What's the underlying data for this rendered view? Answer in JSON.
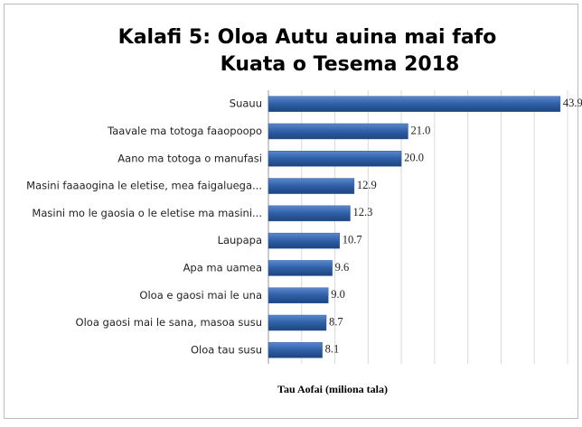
{
  "chart_data": {
    "type": "bar",
    "orientation": "horizontal",
    "title": "Kalafi 5: Oloa Autu auina mai fafo",
    "subtitle": "Kuata o Tesema 2018",
    "x_label": "Tau Aofai (miliona tala)",
    "categories": [
      "Suauu",
      "Taavale ma totoga faaopoopo",
      "Aano ma totoga o manufasi",
      "Masini faaaogina le eletise, mea faigaluega...",
      "Masini mo le gaosia o le eletise ma masini...",
      "Laupapa",
      "Apa ma uamea",
      "Oloa e gaosi mai le una",
      "Oloa gaosi mai le sana, masoa susu",
      "Oloa tau susu"
    ],
    "values": [
      43.9,
      21.0,
      20.0,
      12.9,
      12.3,
      10.7,
      9.6,
      9.0,
      8.7,
      8.1
    ],
    "value_labels": [
      "43.9",
      "21.0",
      "20.0",
      "12.9",
      "12.3",
      "10.7",
      "9.6",
      "9.0",
      "8.7",
      "8.1"
    ],
    "color": "#2f5fa6",
    "xlim": [
      0,
      45
    ],
    "xticks": [
      0,
      5,
      10,
      15,
      20,
      25,
      30,
      35,
      40,
      45
    ],
    "grid": true
  }
}
